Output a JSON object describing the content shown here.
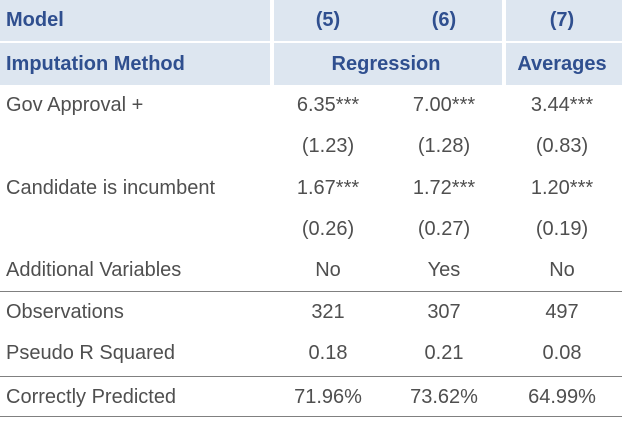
{
  "header": {
    "model_label": "Model",
    "model_cols": [
      "(5)",
      "(6)",
      "(7)"
    ],
    "imputation_label": "Imputation Method",
    "imputation_regression": "Regression",
    "imputation_averages": "Averages"
  },
  "rows": [
    {
      "label": "Gov Approval +",
      "values": [
        "6.35***",
        "7.00***",
        "3.44***"
      ]
    },
    {
      "label": "",
      "values": [
        "(1.23)",
        "(1.28)",
        "(0.83)"
      ]
    },
    {
      "label": "Candidate is incumbent",
      "values": [
        "1.67***",
        "1.72***",
        "1.20***"
      ]
    },
    {
      "label": "",
      "values": [
        "(0.26)",
        "(0.27)",
        "(0.19)"
      ]
    },
    {
      "label": "Additional Variables",
      "values": [
        "No",
        "Yes",
        "No"
      ]
    },
    {
      "label": "Observations",
      "values": [
        "321",
        "307",
        "497"
      ]
    },
    {
      "label": "Pseudo R Squared",
      "values": [
        "0.18",
        "0.21",
        "0.08"
      ]
    },
    {
      "label": "Correctly Predicted",
      "values": [
        "71.96%",
        "73.62%",
        "64.99%"
      ]
    }
  ],
  "colors": {
    "header_bg": "#dde6f0",
    "header_text": "#2f4f8f",
    "body_text": "#4f4f4f",
    "rule": "#808080"
  }
}
